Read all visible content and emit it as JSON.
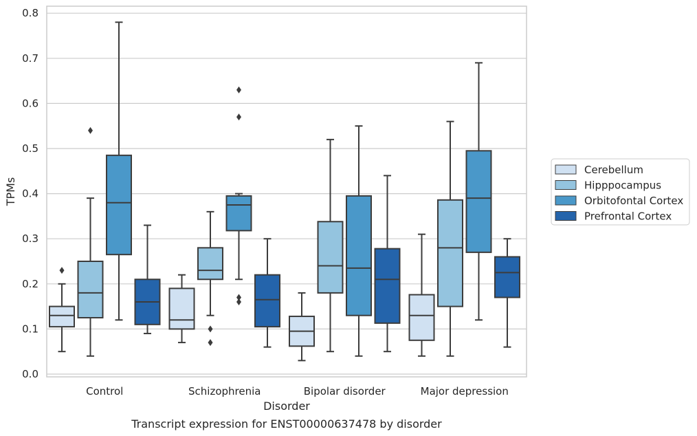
{
  "chart_data": {
    "type": "box",
    "title": "",
    "caption": "Transcript expression for ENST00000637478 by disorder",
    "xlabel": "Disorder",
    "ylabel": "TPMs",
    "ylim": [
      -0.005,
      0.82
    ],
    "yticks": [
      0.0,
      0.1,
      0.2,
      0.3,
      0.4,
      0.5,
      0.6,
      0.7,
      0.8
    ],
    "ytick_labels": [
      "0.0",
      "0.1",
      "0.2",
      "0.3",
      "0.4",
      "0.5",
      "0.6",
      "0.7",
      "0.8"
    ],
    "grid": "horizontal",
    "legend_position": "right",
    "categories": [
      "Control",
      "Schizophrenia",
      "Bipolar disorder",
      "Major depression"
    ],
    "series": [
      {
        "name": "Cerebellum",
        "color": "#d0e1f2",
        "boxes": [
          {
            "whislo": 0.05,
            "q1": 0.105,
            "med": 0.13,
            "q3": 0.15,
            "whishi": 0.2,
            "fliers": [
              0.23
            ]
          },
          {
            "whislo": 0.07,
            "q1": 0.1,
            "med": 0.12,
            "q3": 0.19,
            "whishi": 0.22,
            "fliers": []
          },
          {
            "whislo": 0.03,
            "q1": 0.062,
            "med": 0.095,
            "q3": 0.128,
            "whishi": 0.18,
            "fliers": []
          },
          {
            "whislo": 0.04,
            "q1": 0.075,
            "med": 0.13,
            "q3": 0.176,
            "whishi": 0.31,
            "fliers": []
          }
        ]
      },
      {
        "name": "Hipppocampus",
        "color": "#94c4df",
        "boxes": [
          {
            "whislo": 0.04,
            "q1": 0.125,
            "med": 0.18,
            "q3": 0.25,
            "whishi": 0.39,
            "fliers": [
              0.54
            ]
          },
          {
            "whislo": 0.13,
            "q1": 0.21,
            "med": 0.23,
            "q3": 0.28,
            "whishi": 0.36,
            "fliers": [
              0.1,
              0.07
            ]
          },
          {
            "whislo": 0.05,
            "q1": 0.18,
            "med": 0.24,
            "q3": 0.338,
            "whishi": 0.52,
            "fliers": []
          },
          {
            "whislo": 0.04,
            "q1": 0.15,
            "med": 0.28,
            "q3": 0.386,
            "whishi": 0.56,
            "fliers": []
          }
        ]
      },
      {
        "name": "Orbitofontal Cortex",
        "color": "#4a98c9",
        "boxes": [
          {
            "whislo": 0.12,
            "q1": 0.265,
            "med": 0.38,
            "q3": 0.485,
            "whishi": 0.78,
            "fliers": []
          },
          {
            "whislo": 0.21,
            "q1": 0.318,
            "med": 0.375,
            "q3": 0.395,
            "whishi": 0.4,
            "fliers": [
              0.63,
              0.57,
              0.17,
              0.16
            ]
          },
          {
            "whislo": 0.04,
            "q1": 0.13,
            "med": 0.235,
            "q3": 0.395,
            "whishi": 0.55,
            "fliers": []
          },
          {
            "whislo": 0.12,
            "q1": 0.27,
            "med": 0.39,
            "q3": 0.495,
            "whishi": 0.69,
            "fliers": []
          }
        ]
      },
      {
        "name": "Prefrontal Cortex",
        "color": "#2464ab",
        "boxes": [
          {
            "whislo": 0.09,
            "q1": 0.11,
            "med": 0.16,
            "q3": 0.21,
            "whishi": 0.33,
            "fliers": []
          },
          {
            "whislo": 0.06,
            "q1": 0.105,
            "med": 0.165,
            "q3": 0.22,
            "whishi": 0.3,
            "fliers": []
          },
          {
            "whislo": 0.05,
            "q1": 0.113,
            "med": 0.21,
            "q3": 0.278,
            "whishi": 0.44,
            "fliers": []
          },
          {
            "whislo": 0.06,
            "q1": 0.17,
            "med": 0.225,
            "q3": 0.26,
            "whishi": 0.3,
            "fliers": []
          }
        ]
      }
    ]
  }
}
